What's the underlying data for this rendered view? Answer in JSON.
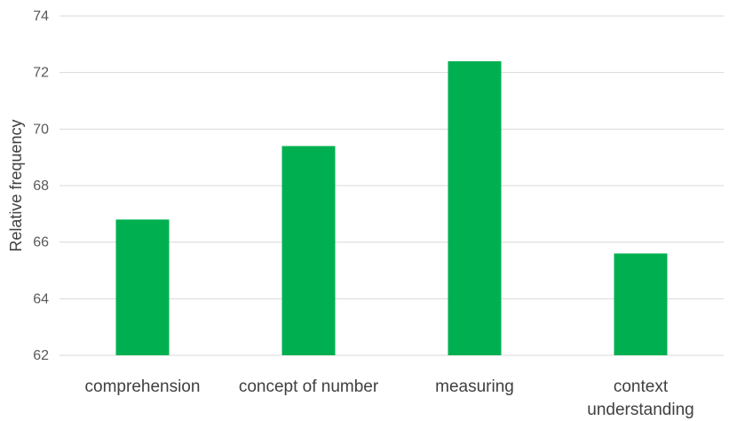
{
  "chart_data": {
    "type": "bar",
    "title": "",
    "xlabel": "",
    "ylabel": "Relative frequency",
    "categories": [
      "comprehension",
      "concept of number",
      "measuring",
      "context understanding"
    ],
    "category_lines": [
      [
        "comprehension"
      ],
      [
        "concept of number"
      ],
      [
        "measuring"
      ],
      [
        "context",
        "understanding"
      ]
    ],
    "values": [
      66.8,
      69.4,
      72.4,
      65.6
    ],
    "ylim": [
      62,
      74
    ],
    "yticks": [
      62,
      64,
      66,
      68,
      70,
      72,
      74
    ],
    "grid": true,
    "legend": "none",
    "bar_color": "#00b050"
  }
}
